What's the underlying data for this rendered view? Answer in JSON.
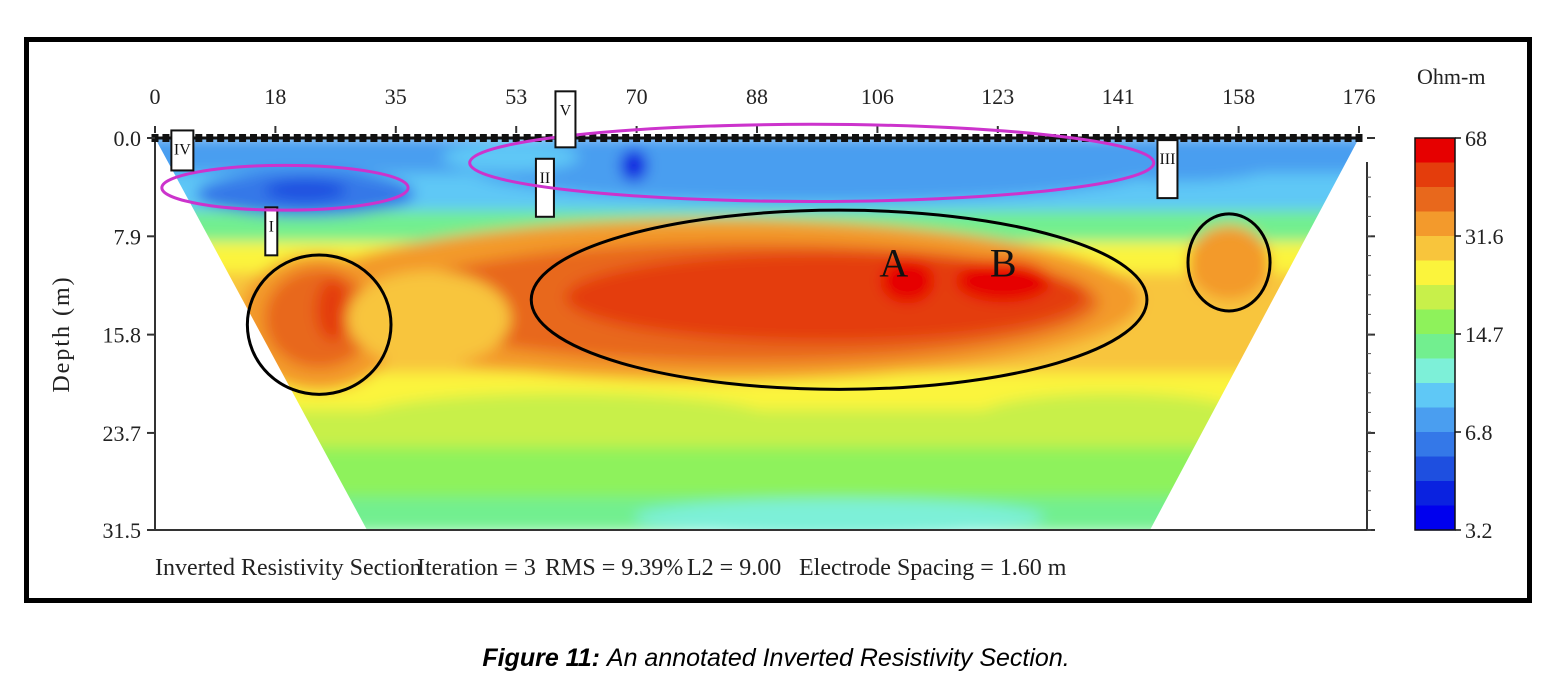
{
  "chart_data": {
    "type": "heatmap",
    "title": "",
    "xlabel": "",
    "ylabel": "Depth (m)",
    "x_ticks": [
      "0",
      "18",
      "35",
      "53",
      "70",
      "88",
      "106",
      "123",
      "141",
      "158",
      "176"
    ],
    "y_ticks": [
      "0.0",
      "7.9",
      "15.8",
      "23.7",
      "31.5"
    ],
    "xlim": [
      0,
      176
    ],
    "ylim": [
      0,
      31.5
    ],
    "colorbar": {
      "unit": "Ohm-m",
      "tick_labels": [
        "68",
        "31.6",
        "14.7",
        "6.8",
        "3.2"
      ],
      "colors": [
        "#e60000",
        "#e43d0c",
        "#e8681c",
        "#f39a2c",
        "#f8c53c",
        "#fbf43c",
        "#c8f04a",
        "#8ef25b",
        "#72ef8f",
        "#7df0d8",
        "#5fc8f6",
        "#4a9ef0",
        "#3478e8",
        "#1e4fe0",
        "#0a22e0",
        "#0000ee"
      ]
    },
    "footer": {
      "section": "Inverted Resistivity Section",
      "iteration": "Iteration = 3",
      "rms": "RMS = 9.39%",
      "l2": "L2 = 9.00",
      "spacing": "Electrode Spacing = 1.60 m"
    },
    "annotations": [
      {
        "label": "I",
        "x": 24,
        "depth": 15,
        "shape": "circle",
        "color": "#000000"
      },
      {
        "label": "II",
        "x": 100,
        "depth": 13,
        "shape": "ellipse",
        "color": "#000000"
      },
      {
        "label": "III",
        "x": 157,
        "depth": 10,
        "shape": "circle",
        "color": "#000000"
      },
      {
        "label": "IV",
        "x": 19,
        "depth": 4,
        "shape": "ellipse",
        "color": "#cc33cc"
      },
      {
        "label": "V",
        "x": 96,
        "depth": 2,
        "shape": "ellipse",
        "color": "#cc33cc"
      },
      {
        "label": "A",
        "x": 108,
        "depth": 10
      },
      {
        "label": "B",
        "x": 124,
        "depth": 10
      }
    ],
    "legend": "right"
  },
  "caption": {
    "label": "Figure 11:",
    "text": "An annotated Inverted Resistivity Section."
  }
}
